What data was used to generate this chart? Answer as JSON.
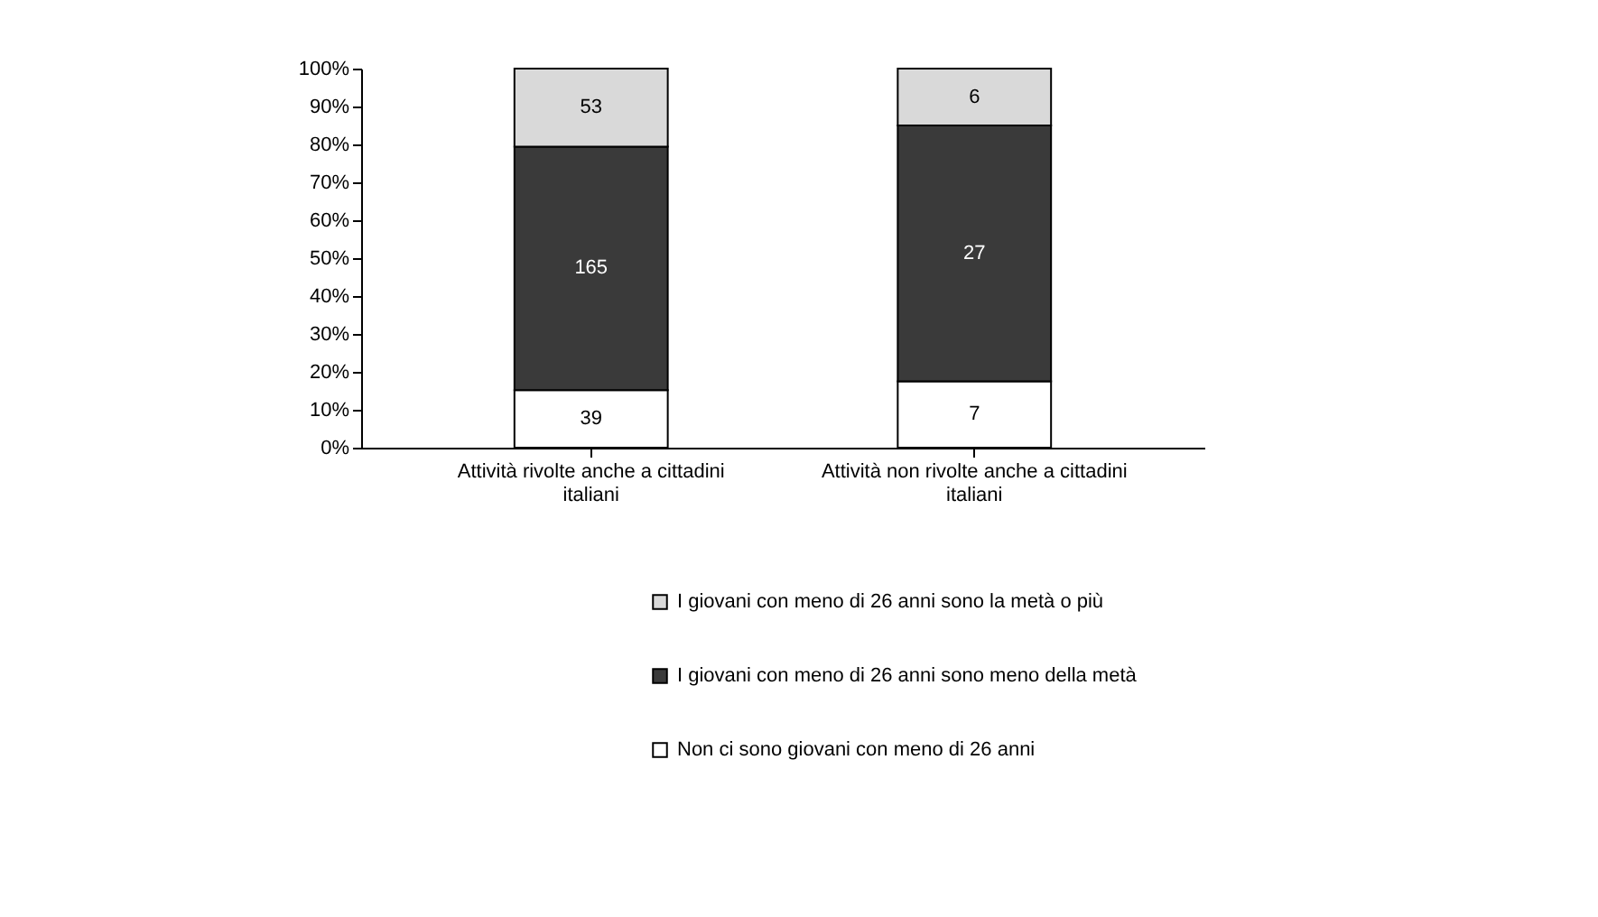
{
  "chart_data": {
    "type": "bar",
    "stacked": true,
    "categories": [
      "Attività rivolte anche a cittadini italiani",
      "Attività non rivolte anche a cittadini italiani"
    ],
    "series": [
      {
        "name": "Non ci sono giovani con meno di 26 anni",
        "color": "#ffffff",
        "values": [
          15.2,
          17.5
        ]
      },
      {
        "name": "I giovani con meno di 26 anni sono meno della metà",
        "color": "#3a3a3a",
        "values": [
          64.2,
          67.5
        ]
      },
      {
        "name": "I giovani con meno di 26 anni sono la metà o più",
        "color": "#d9d9d9",
        "values": [
          20.6,
          15.0
        ]
      }
    ],
    "annotations": [
      "39",
      "165",
      "53",
      "7",
      "27",
      "6"
    ],
    "ylim": [
      0,
      100
    ],
    "yticks": [
      {
        "value": 0,
        "label": "0%"
      },
      {
        "value": 10,
        "label": "10%"
      },
      {
        "value": 20,
        "label": "20%"
      },
      {
        "value": 30,
        "label": "30%"
      },
      {
        "value": 40,
        "label": "40%"
      },
      {
        "value": 50,
        "label": "50%"
      },
      {
        "value": 60,
        "label": "60%"
      },
      {
        "value": 70,
        "label": "70%"
      },
      {
        "value": 80,
        "label": "80%"
      },
      {
        "value": 90,
        "label": "90%"
      },
      {
        "value": 100,
        "label": "100%"
      }
    ],
    "grid": false,
    "legend": "bottom"
  }
}
